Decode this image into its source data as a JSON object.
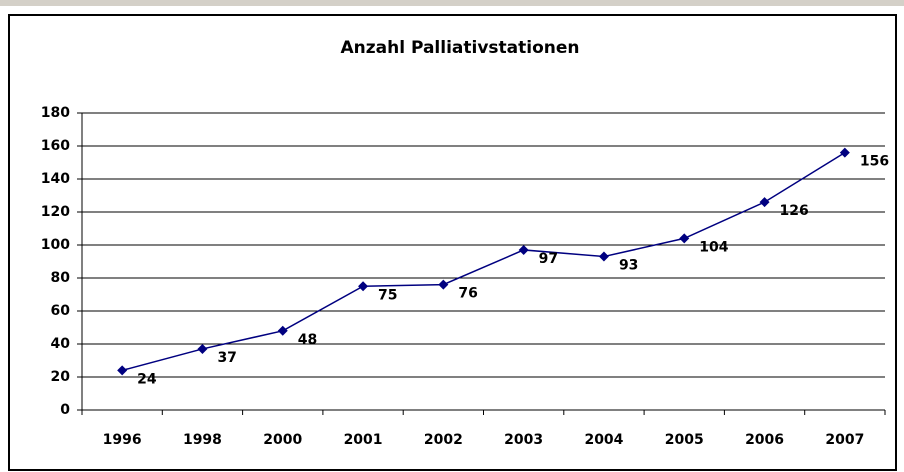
{
  "chart_data": {
    "type": "line",
    "title": "Anzahl Palliativstationen",
    "categories": [
      "1996",
      "1998",
      "2000",
      "2001",
      "2002",
      "2003",
      "2004",
      "2005",
      "2006",
      "2007"
    ],
    "series": [
      {
        "name": "Anzahl Palliativstationen",
        "color": "#000080",
        "values": [
          24,
          37,
          48,
          75,
          76,
          97,
          93,
          104,
          126,
          156
        ]
      }
    ],
    "ylim": [
      0,
      180
    ],
    "yticks": [
      0,
      20,
      40,
      60,
      80,
      100,
      120,
      140,
      160,
      180
    ],
    "grid": true
  }
}
